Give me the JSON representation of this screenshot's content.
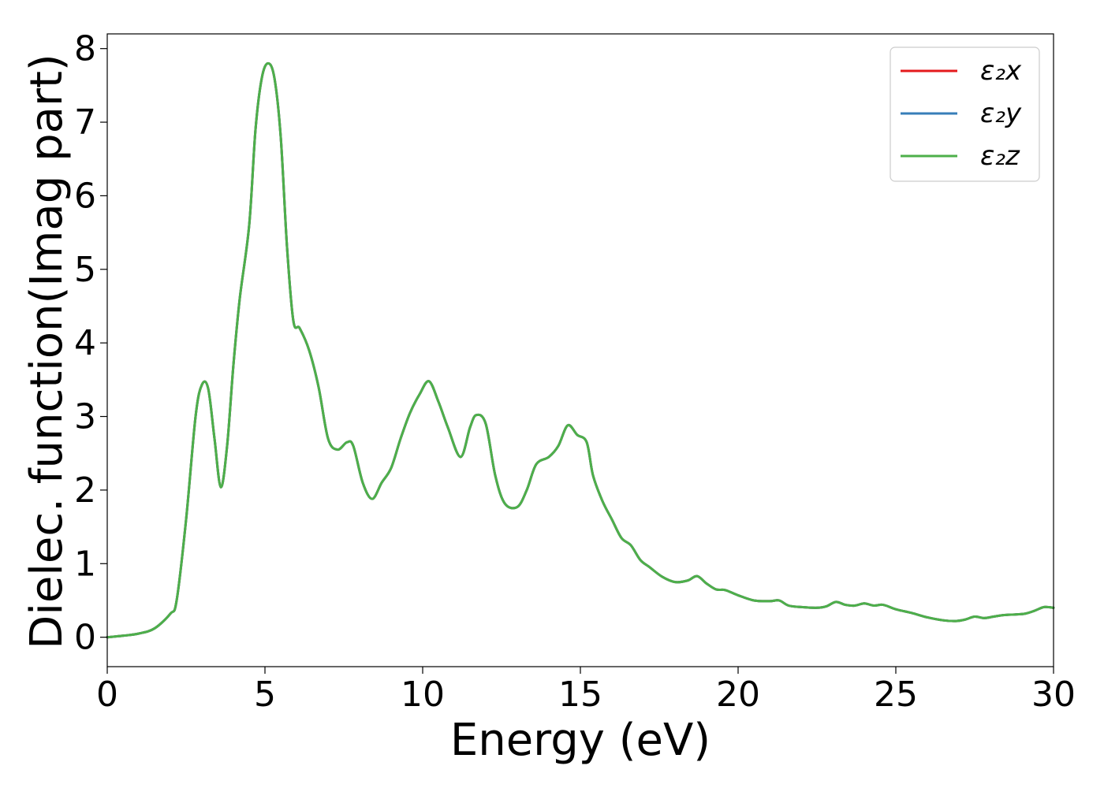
{
  "chart_data": {
    "type": "line",
    "title": "",
    "xlabel": "Energy (eV)",
    "ylabel": "Dielec. function(Imag part)",
    "xlim": [
      0,
      30
    ],
    "ylim": [
      -0.4,
      8.2
    ],
    "xticks": [
      0,
      5,
      10,
      15,
      20,
      25,
      30
    ],
    "yticks": [
      0,
      1,
      2,
      3,
      4,
      5,
      6,
      7,
      8
    ],
    "grid": false,
    "legend_position": "top-right",
    "x": [
      0,
      0.5,
      1.0,
      1.5,
      2.0,
      2.2,
      2.5,
      2.8,
      3.0,
      3.2,
      3.4,
      3.6,
      3.8,
      4.0,
      4.2,
      4.5,
      4.7,
      4.9,
      5.1,
      5.3,
      5.5,
      5.7,
      5.9,
      6.1,
      6.4,
      6.7,
      7.0,
      7.3,
      7.6,
      7.8,
      8.1,
      8.4,
      8.7,
      9.0,
      9.3,
      9.6,
      9.9,
      10.2,
      10.5,
      10.8,
      11.2,
      11.5,
      11.7,
      12.0,
      12.3,
      12.6,
      13.0,
      13.3,
      13.6,
      14.0,
      14.3,
      14.6,
      14.9,
      15.2,
      15.4,
      15.7,
      16.0,
      16.3,
      16.6,
      16.9,
      17.2,
      17.6,
      18.0,
      18.4,
      18.7,
      19.0,
      19.3,
      19.6,
      20.0,
      20.5,
      21.0,
      21.3,
      21.6,
      22.0,
      22.5,
      22.8,
      23.1,
      23.4,
      23.7,
      24.0,
      24.3,
      24.6,
      25.0,
      25.5,
      26.0,
      26.5,
      26.9,
      27.2,
      27.5,
      27.8,
      28.1,
      28.4,
      28.8,
      29.1,
      29.4,
      29.7,
      30.0
    ],
    "series": [
      {
        "name": "ε₂x",
        "color": "#e41a1c",
        "values": [
          0.0,
          0.02,
          0.05,
          0.12,
          0.32,
          0.5,
          1.6,
          3.0,
          3.43,
          3.38,
          2.7,
          2.04,
          2.6,
          3.7,
          4.6,
          5.6,
          6.9,
          7.6,
          7.8,
          7.6,
          6.8,
          5.3,
          4.3,
          4.2,
          3.9,
          3.4,
          2.7,
          2.55,
          2.65,
          2.6,
          2.1,
          1.88,
          2.1,
          2.3,
          2.7,
          3.05,
          3.3,
          3.48,
          3.2,
          2.85,
          2.45,
          2.85,
          3.02,
          2.9,
          2.2,
          1.82,
          1.77,
          2.0,
          2.35,
          2.45,
          2.6,
          2.88,
          2.75,
          2.65,
          2.2,
          1.85,
          1.6,
          1.35,
          1.25,
          1.05,
          0.95,
          0.82,
          0.75,
          0.77,
          0.83,
          0.73,
          0.65,
          0.64,
          0.57,
          0.5,
          0.49,
          0.5,
          0.43,
          0.41,
          0.4,
          0.42,
          0.48,
          0.44,
          0.43,
          0.46,
          0.43,
          0.44,
          0.38,
          0.33,
          0.27,
          0.23,
          0.22,
          0.24,
          0.28,
          0.26,
          0.28,
          0.3,
          0.31,
          0.32,
          0.36,
          0.41,
          0.4
        ]
      },
      {
        "name": "ε₂y",
        "color": "#377eb8",
        "values": [
          0.0,
          0.02,
          0.05,
          0.12,
          0.32,
          0.5,
          1.6,
          3.0,
          3.43,
          3.38,
          2.7,
          2.04,
          2.6,
          3.7,
          4.6,
          5.6,
          6.9,
          7.6,
          7.8,
          7.6,
          6.8,
          5.3,
          4.3,
          4.2,
          3.9,
          3.4,
          2.7,
          2.55,
          2.65,
          2.6,
          2.1,
          1.88,
          2.1,
          2.3,
          2.7,
          3.05,
          3.3,
          3.48,
          3.2,
          2.85,
          2.45,
          2.85,
          3.02,
          2.9,
          2.2,
          1.82,
          1.77,
          2.0,
          2.35,
          2.45,
          2.6,
          2.88,
          2.75,
          2.65,
          2.2,
          1.85,
          1.6,
          1.35,
          1.25,
          1.05,
          0.95,
          0.82,
          0.75,
          0.77,
          0.83,
          0.73,
          0.65,
          0.64,
          0.57,
          0.5,
          0.49,
          0.5,
          0.43,
          0.41,
          0.4,
          0.42,
          0.48,
          0.44,
          0.43,
          0.46,
          0.43,
          0.44,
          0.38,
          0.33,
          0.27,
          0.23,
          0.22,
          0.24,
          0.28,
          0.26,
          0.28,
          0.3,
          0.31,
          0.32,
          0.36,
          0.41,
          0.4
        ]
      },
      {
        "name": "ε₂z",
        "color": "#4daf4a",
        "values": [
          0.0,
          0.02,
          0.05,
          0.12,
          0.32,
          0.5,
          1.6,
          3.0,
          3.43,
          3.38,
          2.7,
          2.04,
          2.6,
          3.7,
          4.6,
          5.6,
          6.9,
          7.6,
          7.8,
          7.6,
          6.8,
          5.3,
          4.3,
          4.2,
          3.9,
          3.4,
          2.7,
          2.55,
          2.65,
          2.6,
          2.1,
          1.88,
          2.1,
          2.3,
          2.7,
          3.05,
          3.3,
          3.48,
          3.2,
          2.85,
          2.45,
          2.85,
          3.02,
          2.9,
          2.2,
          1.82,
          1.77,
          2.0,
          2.35,
          2.45,
          2.6,
          2.88,
          2.75,
          2.65,
          2.2,
          1.85,
          1.6,
          1.35,
          1.25,
          1.05,
          0.95,
          0.82,
          0.75,
          0.77,
          0.83,
          0.73,
          0.65,
          0.64,
          0.57,
          0.5,
          0.49,
          0.5,
          0.43,
          0.41,
          0.4,
          0.42,
          0.48,
          0.44,
          0.43,
          0.46,
          0.43,
          0.44,
          0.38,
          0.33,
          0.27,
          0.23,
          0.22,
          0.24,
          0.28,
          0.26,
          0.28,
          0.3,
          0.31,
          0.32,
          0.36,
          0.41,
          0.4
        ]
      }
    ]
  }
}
